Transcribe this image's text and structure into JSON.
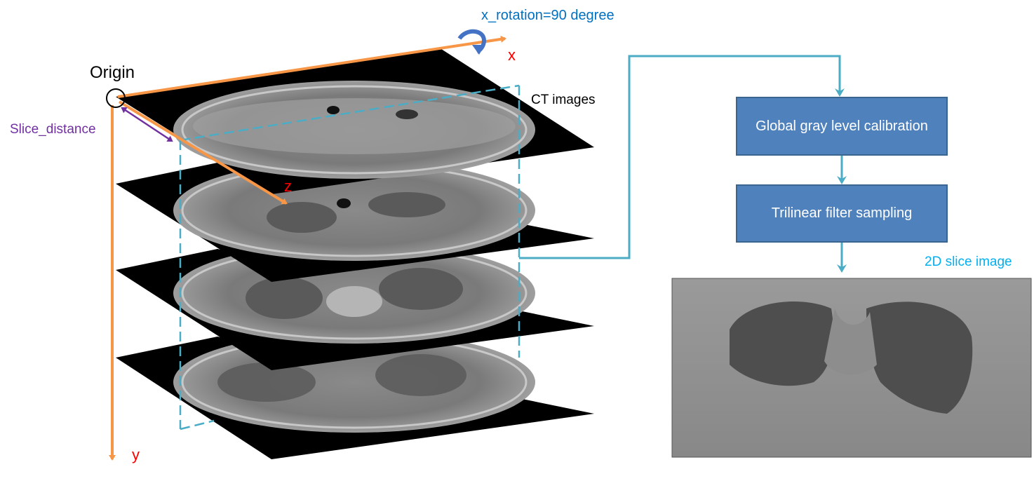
{
  "labels": {
    "origin": "Origin",
    "rotation": "x_rotation=90 degree",
    "axis_x": "x",
    "axis_y": "y",
    "axis_z": "z",
    "slice_distance": "Slice_distance",
    "ct_images": "CT images",
    "slice_image": "2D slice image"
  },
  "steps": [
    {
      "label": "Global gray level calibration"
    },
    {
      "label": "Trilinear filter sampling"
    }
  ],
  "colors": {
    "axis": "#f79646",
    "axis_label": "#ff0000",
    "rotation": "#0070c0",
    "slice_distance": "#7030a0",
    "flow": "#4bacc6",
    "box_fill": "#4f81bd",
    "box_border": "#3a6591",
    "slice_plane": "#000000"
  },
  "icons": {
    "rotation": "curved-rotation-arrow-icon",
    "origin": "origin-circle-icon"
  },
  "ct_slice_count": 4
}
